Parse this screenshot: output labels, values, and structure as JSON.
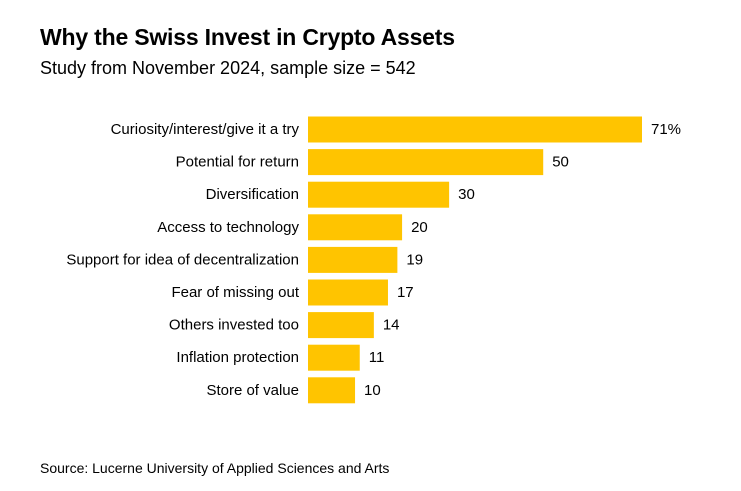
{
  "title": "Why the Swiss Invest in Crypto Assets",
  "subtitle": "Study from November 2024, sample size = 542",
  "source": "Source: Lucerne University of Applied Sciences and Arts",
  "colors": {
    "bar": "#FFC400",
    "text": "#000000",
    "background": "#FFFFFF"
  },
  "chart_data": {
    "type": "bar",
    "orientation": "horizontal",
    "categories": [
      "Curiosity/interest/give it a try",
      "Potential for return",
      "Diversification",
      "Access to technology",
      "Support for idea of decentralization",
      "Fear of missing out",
      "Others invested too",
      "Inflation protection",
      "Store of value"
    ],
    "values": [
      71,
      50,
      30,
      20,
      19,
      17,
      14,
      11,
      10
    ],
    "value_labels": [
      "71%",
      "50",
      "30",
      "20",
      "19",
      "17",
      "14",
      "11",
      "10"
    ],
    "title": "Why the Swiss Invest in Crypto Assets",
    "subtitle": "Study from November 2024, sample size = 542",
    "xlabel": "",
    "ylabel": "",
    "xlim": [
      0,
      71
    ],
    "grid": false,
    "legend": "none"
  }
}
